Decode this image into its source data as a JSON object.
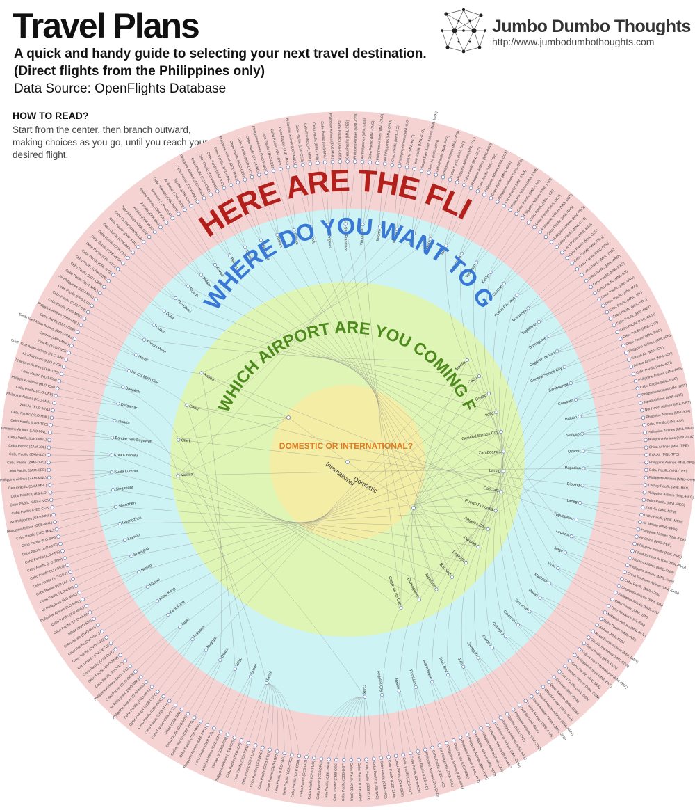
{
  "header": {
    "title": "Travel Plans",
    "subtitle_line1": "A quick and handy guide to selecting your next travel destination.",
    "subtitle_line2": "(Direct flights from the Philippines only)",
    "source": "Data Source: OpenFlights Database"
  },
  "howto": {
    "title": "HOW TO READ?",
    "text": "Start from the center, then branch outward, making choices as you go, until you reach your desired flight."
  },
  "brand": {
    "name": "Jumbo Dumbo Thoughts",
    "url": "http://www.jumbodumbothoughts.com",
    "logo_icon": "network-dots-icon"
  },
  "rings": {
    "flights": {
      "label": "HERE ARE THE FLIGHTS.",
      "color": "#f5d3d3",
      "text_color": "#b3201c"
    },
    "destinations": {
      "label": "WHERE DO YOU WANT TO GO?",
      "color": "#cdf3f5",
      "text_color": "#3a78d6"
    },
    "airports": {
      "label": "WHICH AIRPORT ARE YOU COMING FROM?",
      "color": "#dff5b5",
      "text_color": "#4f8a1e"
    },
    "center": {
      "label": "DOMESTIC OR INTERNATIONAL?",
      "color": "#f3eda6",
      "text_color": "#e07b1f"
    }
  },
  "center_branches": [
    "International",
    "Domestic"
  ],
  "international_airports": [
    "Manila",
    "Clark",
    "Cebu",
    "Kalibo"
  ],
  "domestic_airports": [
    "Manila",
    "Cebu",
    "Davao",
    "Iloilo",
    "General Santos City",
    "Zamboanga",
    "Laoag",
    "Caticlan",
    "Puerto Princesa",
    "Angeles City",
    "Dipolog",
    "Legazpi",
    "Bacolod",
    "Tacloban",
    "Dumaguete",
    "Cagayan de Oro"
  ],
  "destinations": [
    "Seoul",
    "Busan",
    "Tokyo",
    "Osaka",
    "Nagoya",
    "Fukuoka",
    "Taipei",
    "Kaohsiung",
    "Hong Kong",
    "Macau",
    "Beijing",
    "Shanghai",
    "Xiamen",
    "Guangzhou",
    "Shenzhen",
    "Singapore",
    "Kuala Lumpur",
    "Kota Kinabalu",
    "Bandar Seri Begawan",
    "Jakarta",
    "Denpasar",
    "Bangkok",
    "Ho Chi Minh City",
    "Hanoi",
    "Phnom Penh",
    "Dubai",
    "Doha",
    "Abu Dhabi",
    "Riyadh",
    "Jeddah",
    "Kuwait",
    "Bahrain",
    "Sydney",
    "Melbourne",
    "Guam",
    "Saipan",
    "Honolulu",
    "Los Angeles",
    "San Francisco",
    "Vancouver",
    "Toronto",
    "Manila",
    "Cebu",
    "Davao",
    "Iloilo",
    "Bacolod",
    "Tacloban",
    "Kalibo",
    "Caticlan",
    "Puerto Princesa",
    "Busuanga",
    "Tagbilaran",
    "Dumaguete",
    "Cagayan de Oro",
    "General Santos City",
    "Zamboanga",
    "Cotabato",
    "Butuan",
    "Surigao",
    "Ozamiz",
    "Pagadian",
    "Dipolog",
    "Laoag",
    "Tuguegarao",
    "Legazpi",
    "Naga",
    "Virac",
    "Masbate",
    "Roxas",
    "San Jose",
    "Catarman",
    "Calbayog",
    "Siargao",
    "Camiguin",
    "Jolo",
    "Tawi-Tawi",
    "Marinduque",
    "Romblon",
    "Basco",
    "Angeles City",
    "Clark"
  ],
  "flights": [
    "Cebu Pacific (MNL-CEB)",
    "Philippine Airlines (MNL-CEB)",
    "Air Philippines (MNL-CEB)",
    "Cebu Pacific (MNL-DVO)",
    "Philippine Airlines (MNL-DVO)",
    "Air Philippines (MNL-DVO)",
    "Cebu Pacific (MNL-ILO)",
    "Philippine Airlines (MNL-ILO)",
    "Zest Air (MNL-KLO)",
    "Cebu Pacific (MNL-KLO)",
    "South East Asian Airlines (MNL-MPH)",
    "Zest Air (MNL-MPH)",
    "Cebu Pacific (MNL-PPS)",
    "Philippine Airlines (MNL-PPS)",
    "Cebu Pacific (MNL-TAC)",
    "Philippine Airlines (MNL-TAC)",
    "Cebu Pacific (MNL-BCD)",
    "Philippine Airlines (MNL-BCD)",
    "Cebu Pacific (MNL-CGY)",
    "Philippine Airlines (MNL-CGY)",
    "Cebu Pacific (MNL-GES)",
    "Philippine Airlines (MNL-GES)",
    "Cebu Pacific (MNL-ZAM)",
    "Philippine Airlines (MNL-ZAM)",
    "Cebu Pacific (MNL-LAO)",
    "Philippine Airlines (MNL-LAO)",
    "Cebu Pacific (MNL-LGP)",
    "Cebu Pacific (MNL-DGT)",
    "Philippine Airlines (MNL-DGT)",
    "Cebu Pacific (MNL-TAG)",
    "Philippine Airlines (MNL-TAG)",
    "Cebu Pacific (MNL-CYZ)",
    "Cebu Pacific (MNL-BXU)",
    "Cebu Pacific (MNL-OZC)",
    "Cebu Pacific (MNL-PAG)",
    "Cebu Pacific (MNL-DPL)",
    "Cebu Pacific (MNL-TUG)",
    "Cebu Pacific (MNL-WNP)",
    "Cebu Pacific (MNL-RXS)",
    "Cebu Pacific (MNL-SJI)",
    "Cebu Pacific (MNL-USU)",
    "Cebu Pacific (MNL-IAO)",
    "Cebu Pacific (MNL-JOL)",
    "Cebu Pacific (MNL-VRC)",
    "Cebu Pacific (MNL-MBT)",
    "Cebu Pacific (MNL-CRM)",
    "Cebu Pacific (MNL-CYP)",
    "Cebu Pacific (MNL-BSO)",
    "Philippine Airlines (MNL-ICN)",
    "Korean Air (MNL-ICN)",
    "Asiana Airlines (MNL-ICN)",
    "Cebu Pacific (MNL-ICN)",
    "Philippine Airlines (MNL-PUS)",
    "Cebu Pacific (MNL-PUS)",
    "Philippine Airlines (MNL-NRT)",
    "Japan Airlines (MNL-NRT)",
    "Northwest Airlines (MNL-NRT)",
    "Philippine Airlines (MNL-KIX)",
    "Cebu Pacific (MNL-KIX)",
    "Philippine Airlines (MNL-NGO)",
    "Philippine Airlines (MNL-FUK)",
    "China Airlines (MNL-TPE)",
    "EVA Air (MNL-TPE)",
    "Philippine Airlines (MNL-TPE)",
    "Cebu Pacific (MNL-TPE)",
    "Philippine Airlines (MNL-KHH)",
    "Cathay Pacific (MNL-HKG)",
    "Philippine Airlines (MNL-HKG)",
    "Cebu Pacific (MNL-HKG)",
    "Zest Air (MNL-MFM)",
    "Cebu Pacific (MNL-MFM)",
    "Air Macau (MNL-MFM)",
    "Philippine Airlines (MNL-PEK)",
    "Air China (MNL-PEK)",
    "Philippine Airlines (MNL-PVG)",
    "China Eastern Airlines (MNL-PVG)",
    "Xiamen Airlines (MNL-XMN)",
    "Philippine Airlines (MNL-XMN)",
    "China Southern Airlines (MNL-CAN)",
    "Cebu Pacific (MNL-CAN)",
    "Singapore Airlines (MNL-SIN)",
    "Philippine Airlines (MNL-SIN)",
    "Cebu Pacific (MNL-SIN)",
    "Tiger Airways (MNL-SIN)",
    "Malaysia Airlines (MNL-KUL)",
    "Cebu Pacific (MNL-KUL)",
    "AirAsia (MNL-KUL)",
    "Royal Brunei Airlines (MNL-BWN)",
    "Garuda Indonesia (MNL-CGK)",
    "Cebu Pacific (MNL-CGK)",
    "Thai Airways International (MNL-BKK)",
    "Philippine Airlines (MNL-BKK)",
    "Cebu Pacific (MNL-BKK)",
    "Vietnam Airlines (MNL-SGN)",
    "Cebu Pacific (MNL-SGN)",
    "Emirates (MNL-DXB)",
    "Qatar Airways (MNL-DOH)",
    "Etihad Airways (MNL-AUH)",
    "Saudi Arabian Airlines (MNL-RUH)",
    "Saudi Arabian Airlines (MNL-JED)",
    "Kuwait Airways (MNL-KWI)",
    "Gulf Air (MNL-BAH)",
    "Philippine Airlines (MNL-SYD)",
    "Qantas (MNL-SYD)",
    "Philippine Airlines (MNL-MEL)",
    "Continental Airlines (MNL-GUM)",
    "Philippine Airlines (MNL-HNL)",
    "Philippine Airlines (MNL-LAX)",
    "Philippine Airlines (MNL-SFO)",
    "Philippine Airlines (MNL-YVR)",
    "Philippine Airlines (MNL-YYZ)",
    "Cebu Pacific (CEB-MNL)",
    "Philippine Airlines (CEB-MNL)",
    "Air Philippines (CEB-MNL)",
    "Cebu Pacific (CEB-DVO)",
    "Philippine Airlines (CEB-DVO)",
    "Cebu Pacific (CEB-ILO)",
    "Cebu Pacific (CEB-BCD)",
    "Cebu Pacific (CEB-CGY)",
    "Cebu Pacific (CEB-GES)",
    "Cebu Pacific (CEB-ZAM)",
    "Cebu Pacific (CEB-PPS)",
    "Cebu Pacific (CEB-TAC)",
    "Cebu Pacific (CEB-KLO)",
    "Cebu Pacific (CEB-MPH)",
    "Cebu Pacific (CEB-BXU)",
    "Cebu Pacific (CEB-DGT)",
    "Cebu Pacific (CEB-OZC)",
    "Cebu Pacific (CEB-PAG)",
    "Cebu Pacific (CEB-DPL)",
    "Cebu Pacific (CEB-SUG)",
    "Cebu Pacific (CEB-IAO)",
    "Cebu Pacific (CEB-CGM)",
    "Cebu Pacific (CEB-CBO)",
    "Cebu Pacific (CEB-TAG)",
    "Cebu Pacific (CEB-LGP)",
    "Cebu Pacific (CEB-CYZ)",
    "Cebu Pacific (CEB-BSO)",
    "Cebu Pacific (CEB-USU)",
    "Cebu Pacific (CEB-RXS)",
    "Cebu Pacific (CEB-ICN)",
    "Philippine Airlines (CEB-ICN)",
    "Korean Air (CEB-ICN)",
    "Asiana Airlines (CEB-ICN)",
    "Cebu Pacific (CEB-PUS)",
    "Philippine Airlines (CEB-NRT)",
    "Cebu Pacific (CEB-HKG)",
    "Cathay Pacific (CEB-HKG)",
    "Cebu Pacific (CEB-SIN)",
    "Silkair (CEB-SIN)",
    "Cebu Pacific (CEB-KUL)",
    "Cebu Pacific (CEB-TPE)",
    "Cebu Pacific (CEB-BKK)",
    "Qatar Airways (CEB-DOH)",
    "Cebu Pacific (DVO-MNL)",
    "Philippine Airlines (DVO-MNL)",
    "Air Philippines (DVO-MNL)",
    "Cebu Pacific (DVO-CEB)",
    "Philippine Airlines (DVO-CEB)",
    "Cebu Pacific (DVO-ILO)",
    "Cebu Pacific (DVO-ZAM)",
    "Cebu Pacific (DVO-CGY)",
    "Cebu Pacific (DVO-BCD)",
    "Cebu Pacific (DVO-GES)",
    "Cebu Pacific (DVO-TAC)",
    "Cebu Pacific (DVO-SIN)",
    "Silkair (DVO-SIN)",
    "Cebu Pacific (DVO-HKG)",
    "Cebu Pacific (ILO-MNL)",
    "Philippine Airlines (ILO-MNL)",
    "Air Philippines (ILO-MNL)",
    "Cebu Pacific (ILO-CEB)",
    "Cebu Pacific (ILO-DVO)",
    "Cebu Pacific (ILO-CGY)",
    "Cebu Pacific (ILO-GES)",
    "Cebu Pacific (ILO-ZAM)",
    "Cebu Pacific (ILO-PPS)",
    "Cebu Pacific (ILO-HKG)",
    "Cebu Pacific (ILO-SIN)",
    "Cebu Pacific (GES-MNL)",
    "Philippine Airlines (GES-MNL)",
    "Air Philippines (GES-MNL)",
    "Cebu Pacific (GES-CEB)",
    "Cebu Pacific (GES-DVO)",
    "Cebu Pacific (GES-ILO)",
    "Cebu Pacific (ZAM-MNL)",
    "Philippine Airlines (ZAM-MNL)",
    "Cebu Pacific (ZAM-CEB)",
    "Cebu Pacific (ZAM-DVO)",
    "Cebu Pacific (ZAM-ILO)",
    "Cebu Pacific (ZAM-JOL)",
    "Cebu Pacific (LAO-MNL)",
    "Philippine Airlines (LAO-MNL)",
    "Cebu Pacific (LAO-TPE)",
    "Cebu Pacific (KLO-MNL)",
    "Zest Air (KLO-MNL)",
    "Philippine Airlines (KLO-MNL)",
    "Cebu Pacific (KLO-CEB)",
    "Philippine Airlines (KLO-ICN)",
    "Cebu Pacific (KLO-ICN)",
    "Philippine Airlines (KLO-TPE)",
    "Air Philippines (KLO-PVG)",
    "South East Asian Airlines (KLO-SIN)",
    "Zest Air (KLO-PVG)",
    "Zest Air (MPH-MNL)",
    "South East Asian Airlines (MPH-MNL)",
    "Cebu Pacific (MPH-CEB)",
    "Philippine Airlines (PPS-MNL)",
    "Cebu Pacific (PPS-MNL)",
    "Cebu Pacific (PPS-CEB)",
    "Cebu Pacific (PPS-ILO)",
    "Air Philippines (DGT-MNL)",
    "Cebu Pacific (DGT-MNL)",
    "Cebu Pacific (DGT-CEB)",
    "Cebu Pacific (CRK-CEB)",
    "Cebu Pacific (CRK-ILO)",
    "Cebu Pacific (CRK-KLO)",
    "Cebu Pacific (CRK-HKG)",
    "Cebu Pacific (CRK-SIN)",
    "Cebu Pacific (CRK-BKK)",
    "Cebu Pacific (CRK-KUL)",
    "Cebu Pacific (CRK-MFM)",
    "Tiger Airways (CRK-SIN)",
    "AirAsia (CRK-KUL)",
    "AirAsia (CRK-BKI)",
    "Asiana Airlines (CRK-ICN)",
    "Emirates (CRK-DXB)",
    "Qatar Airways (CRK-DOH)",
    "Air Busan (CRK-PUS)",
    "Jeju Air (CRK-ICN)",
    "Cebu Pacific (CGY-MNL)",
    "Philippine Airlines (CGY-MNL)",
    "Cebu Pacific (CGY-CEB)",
    "Cebu Pacific (CGY-DVO)",
    "Cebu Pacific (CGY-ILO)",
    "Cebu Pacific (BCD-MNL)",
    "Philippine Airlines (BCD-MNL)",
    "Cebu Pacific (BCD-CEB)",
    "Cebu Pacific (BCD-DVO)",
    "Cebu Pacific (TAC-MNL)",
    "Philippine Airlines (TAC-MNL)",
    "Cebu Pacific (TAC-CEB)",
    "Cebu Pacific (TAC-DVO)",
    "Cebu Pacific (LGP-MNL)",
    "Philippine Airlines (LGP-MNL)",
    "Cebu Pacific (LGP-CEB)",
    "Cebu Pacific (DPL-MNL)",
    "Cebu Pacific (DPL-CEB)",
    "Cebu Pacific (TAG-MNL)",
    "Philippine Airlines (TAG-MNL)",
    "Cebu Pacific (TAG-CEB)"
  ],
  "node_color": "#ffffff",
  "node_stroke": "#4a6bb0",
  "link_color": "#8a8a8a"
}
